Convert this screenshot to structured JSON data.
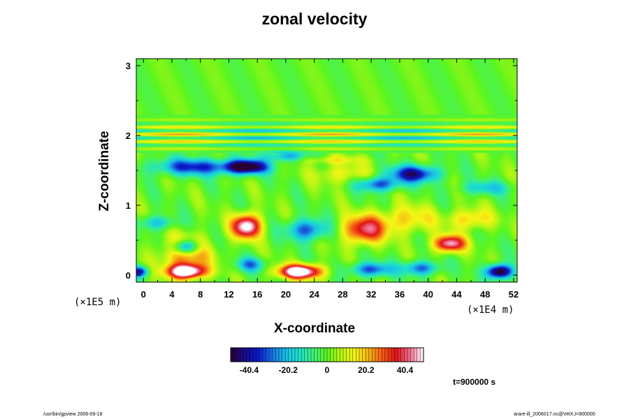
{
  "chart_data": {
    "type": "heatmap",
    "title": "zonal velocity",
    "xlabel": "X-coordinate",
    "ylabel": "Z-coordinate",
    "x_ticks": [
      "0",
      "4",
      "8",
      "12",
      "16",
      "20",
      "24",
      "28",
      "32",
      "36",
      "40",
      "44",
      "48",
      "52"
    ],
    "y_ticks": [
      "0",
      "1",
      "2",
      "3"
    ],
    "xlim": [
      -1,
      52.5
    ],
    "ylim": [
      -0.1,
      3.1
    ],
    "x_scale_label": "(×1E4 m)",
    "y_scale_label": "(×1E5 m)",
    "colorbar": {
      "ticks": [
        "-40.4",
        "-20.2",
        "0",
        "20.2",
        "40.4"
      ],
      "range": [
        -50,
        50
      ],
      "colors": [
        "#2a0033",
        "#1a0a8c",
        "#0a1acc",
        "#1a6fe0",
        "#19bfe6",
        "#1ee0c8",
        "#3ef07a",
        "#5bf51e",
        "#b8f514",
        "#f5f514",
        "#f5b414",
        "#f55a14",
        "#e11414",
        "#f06a8c",
        "#ffffff"
      ]
    },
    "time_label": "t=900000 s"
  },
  "footer": {
    "left": "/usr/bin/gpview 2006-09-18",
    "right": "arare-ill_2006017.nc@VelX,t=900000"
  }
}
